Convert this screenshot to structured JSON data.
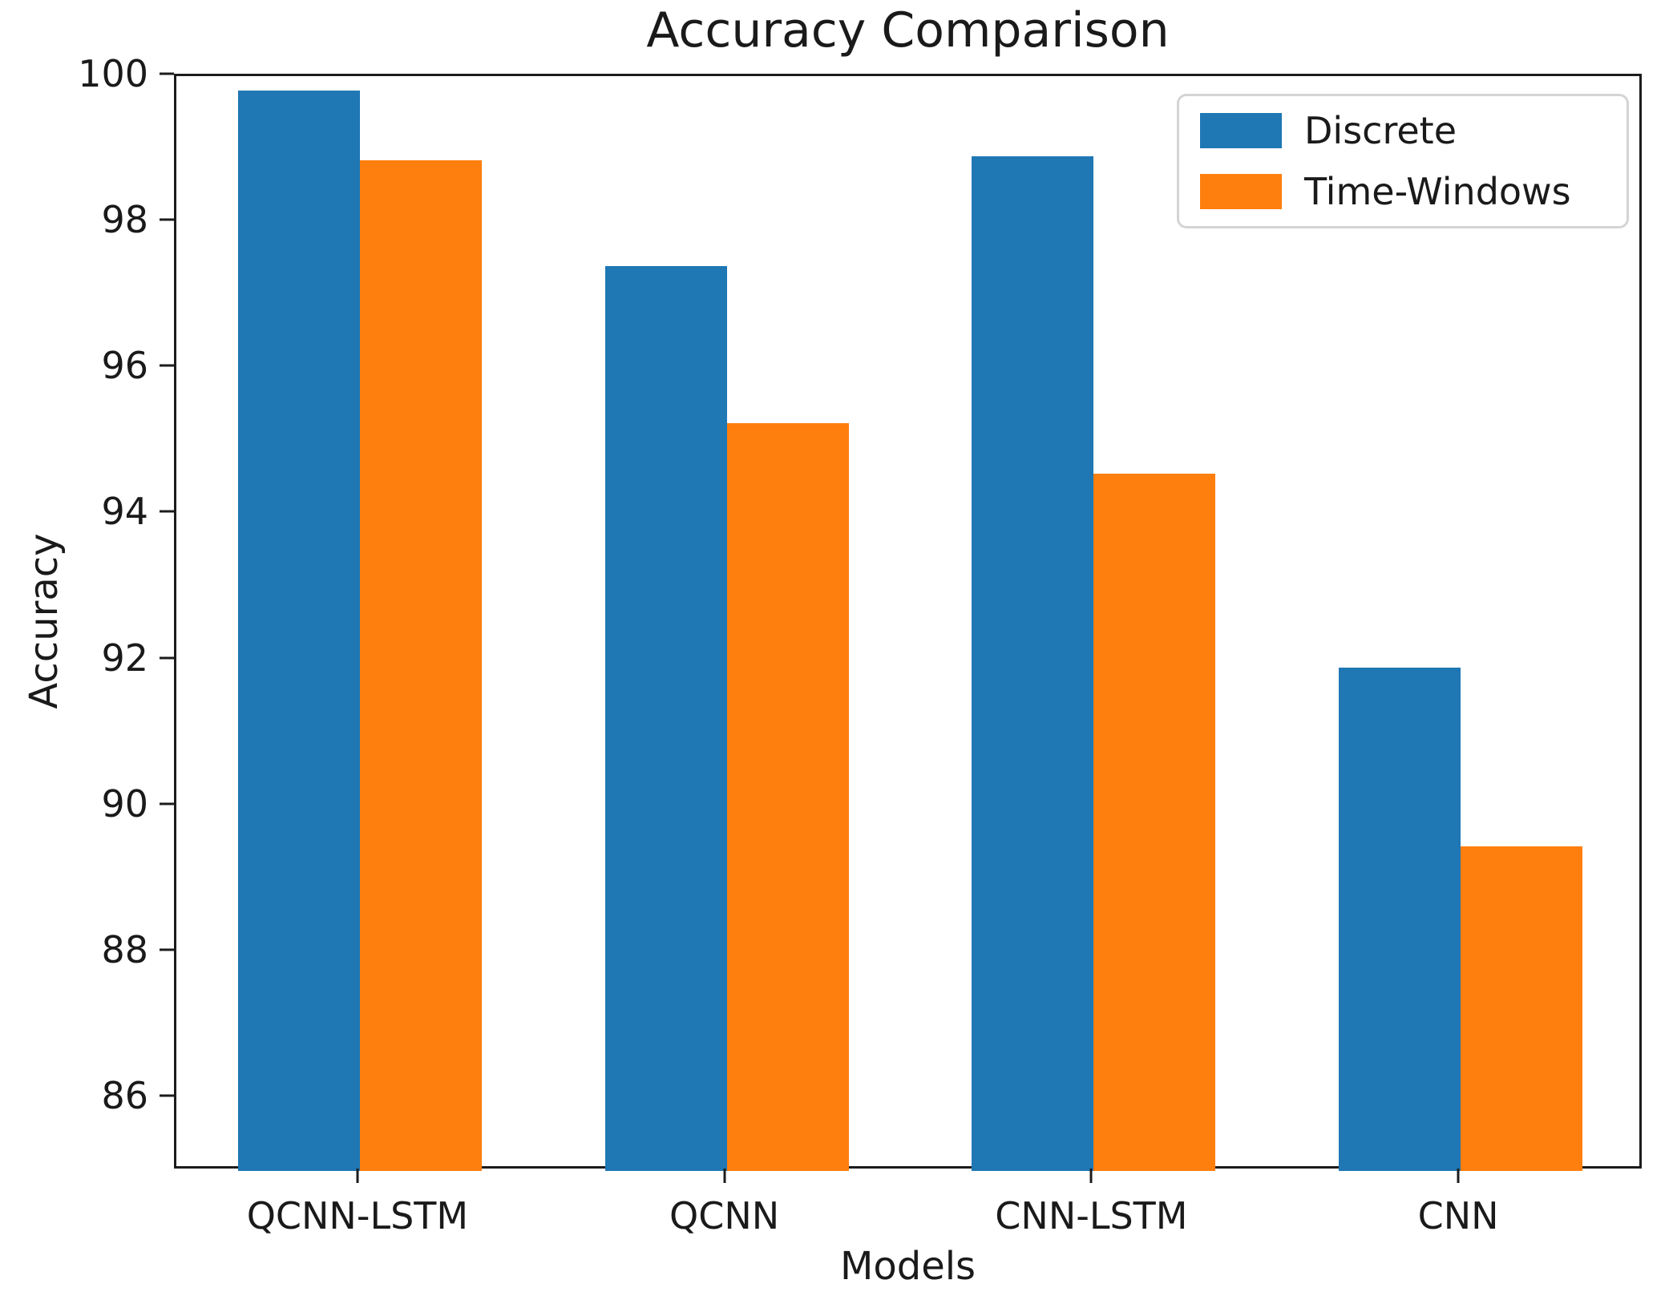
{
  "chart_data": {
    "type": "bar",
    "title": "Accuracy Comparison",
    "xlabel": "Models",
    "ylabel": "Accuracy",
    "categories": [
      "QCNN-LSTM",
      "QCNN",
      "CNN-LSTM",
      "CNN"
    ],
    "series": [
      {
        "name": "Discrete",
        "color": "#1f77b4",
        "values": [
          99.8,
          97.4,
          98.9,
          91.9
        ]
      },
      {
        "name": "Time-Windows",
        "color": "#ff7f0e",
        "values": [
          98.85,
          95.25,
          94.55,
          89.45
        ]
      }
    ],
    "ylim": [
      85,
      100
    ],
    "yticks": [
      86,
      88,
      90,
      92,
      94,
      96,
      98,
      100
    ],
    "grid": false,
    "legend_position": "upper right",
    "axis_color": "#1c1c1c"
  }
}
